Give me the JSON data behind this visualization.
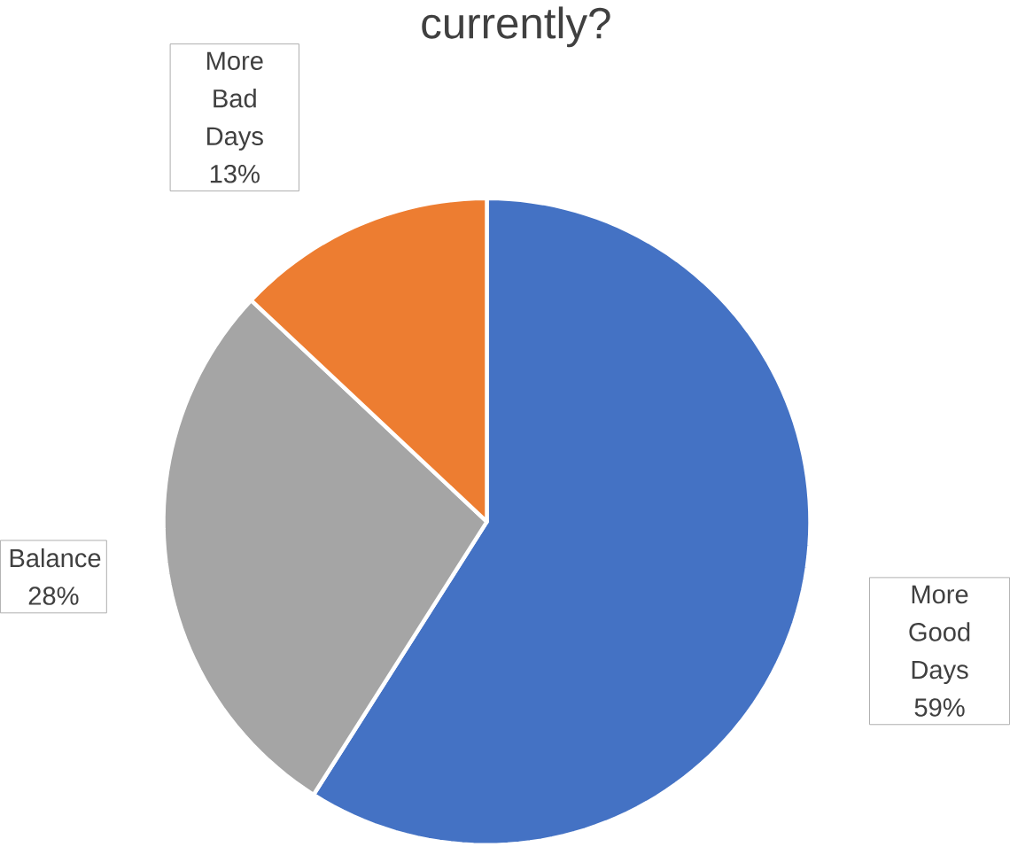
{
  "chart_data": {
    "type": "pie",
    "title": "currently?",
    "categories": [
      "More Good Days",
      "Balance",
      "More Bad Days"
    ],
    "values": [
      59,
      28,
      13
    ],
    "colors": [
      "#4472c4",
      "#a5a5a5",
      "#ed7d31"
    ],
    "value_labels": [
      "59%",
      "28%",
      "13%"
    ]
  }
}
